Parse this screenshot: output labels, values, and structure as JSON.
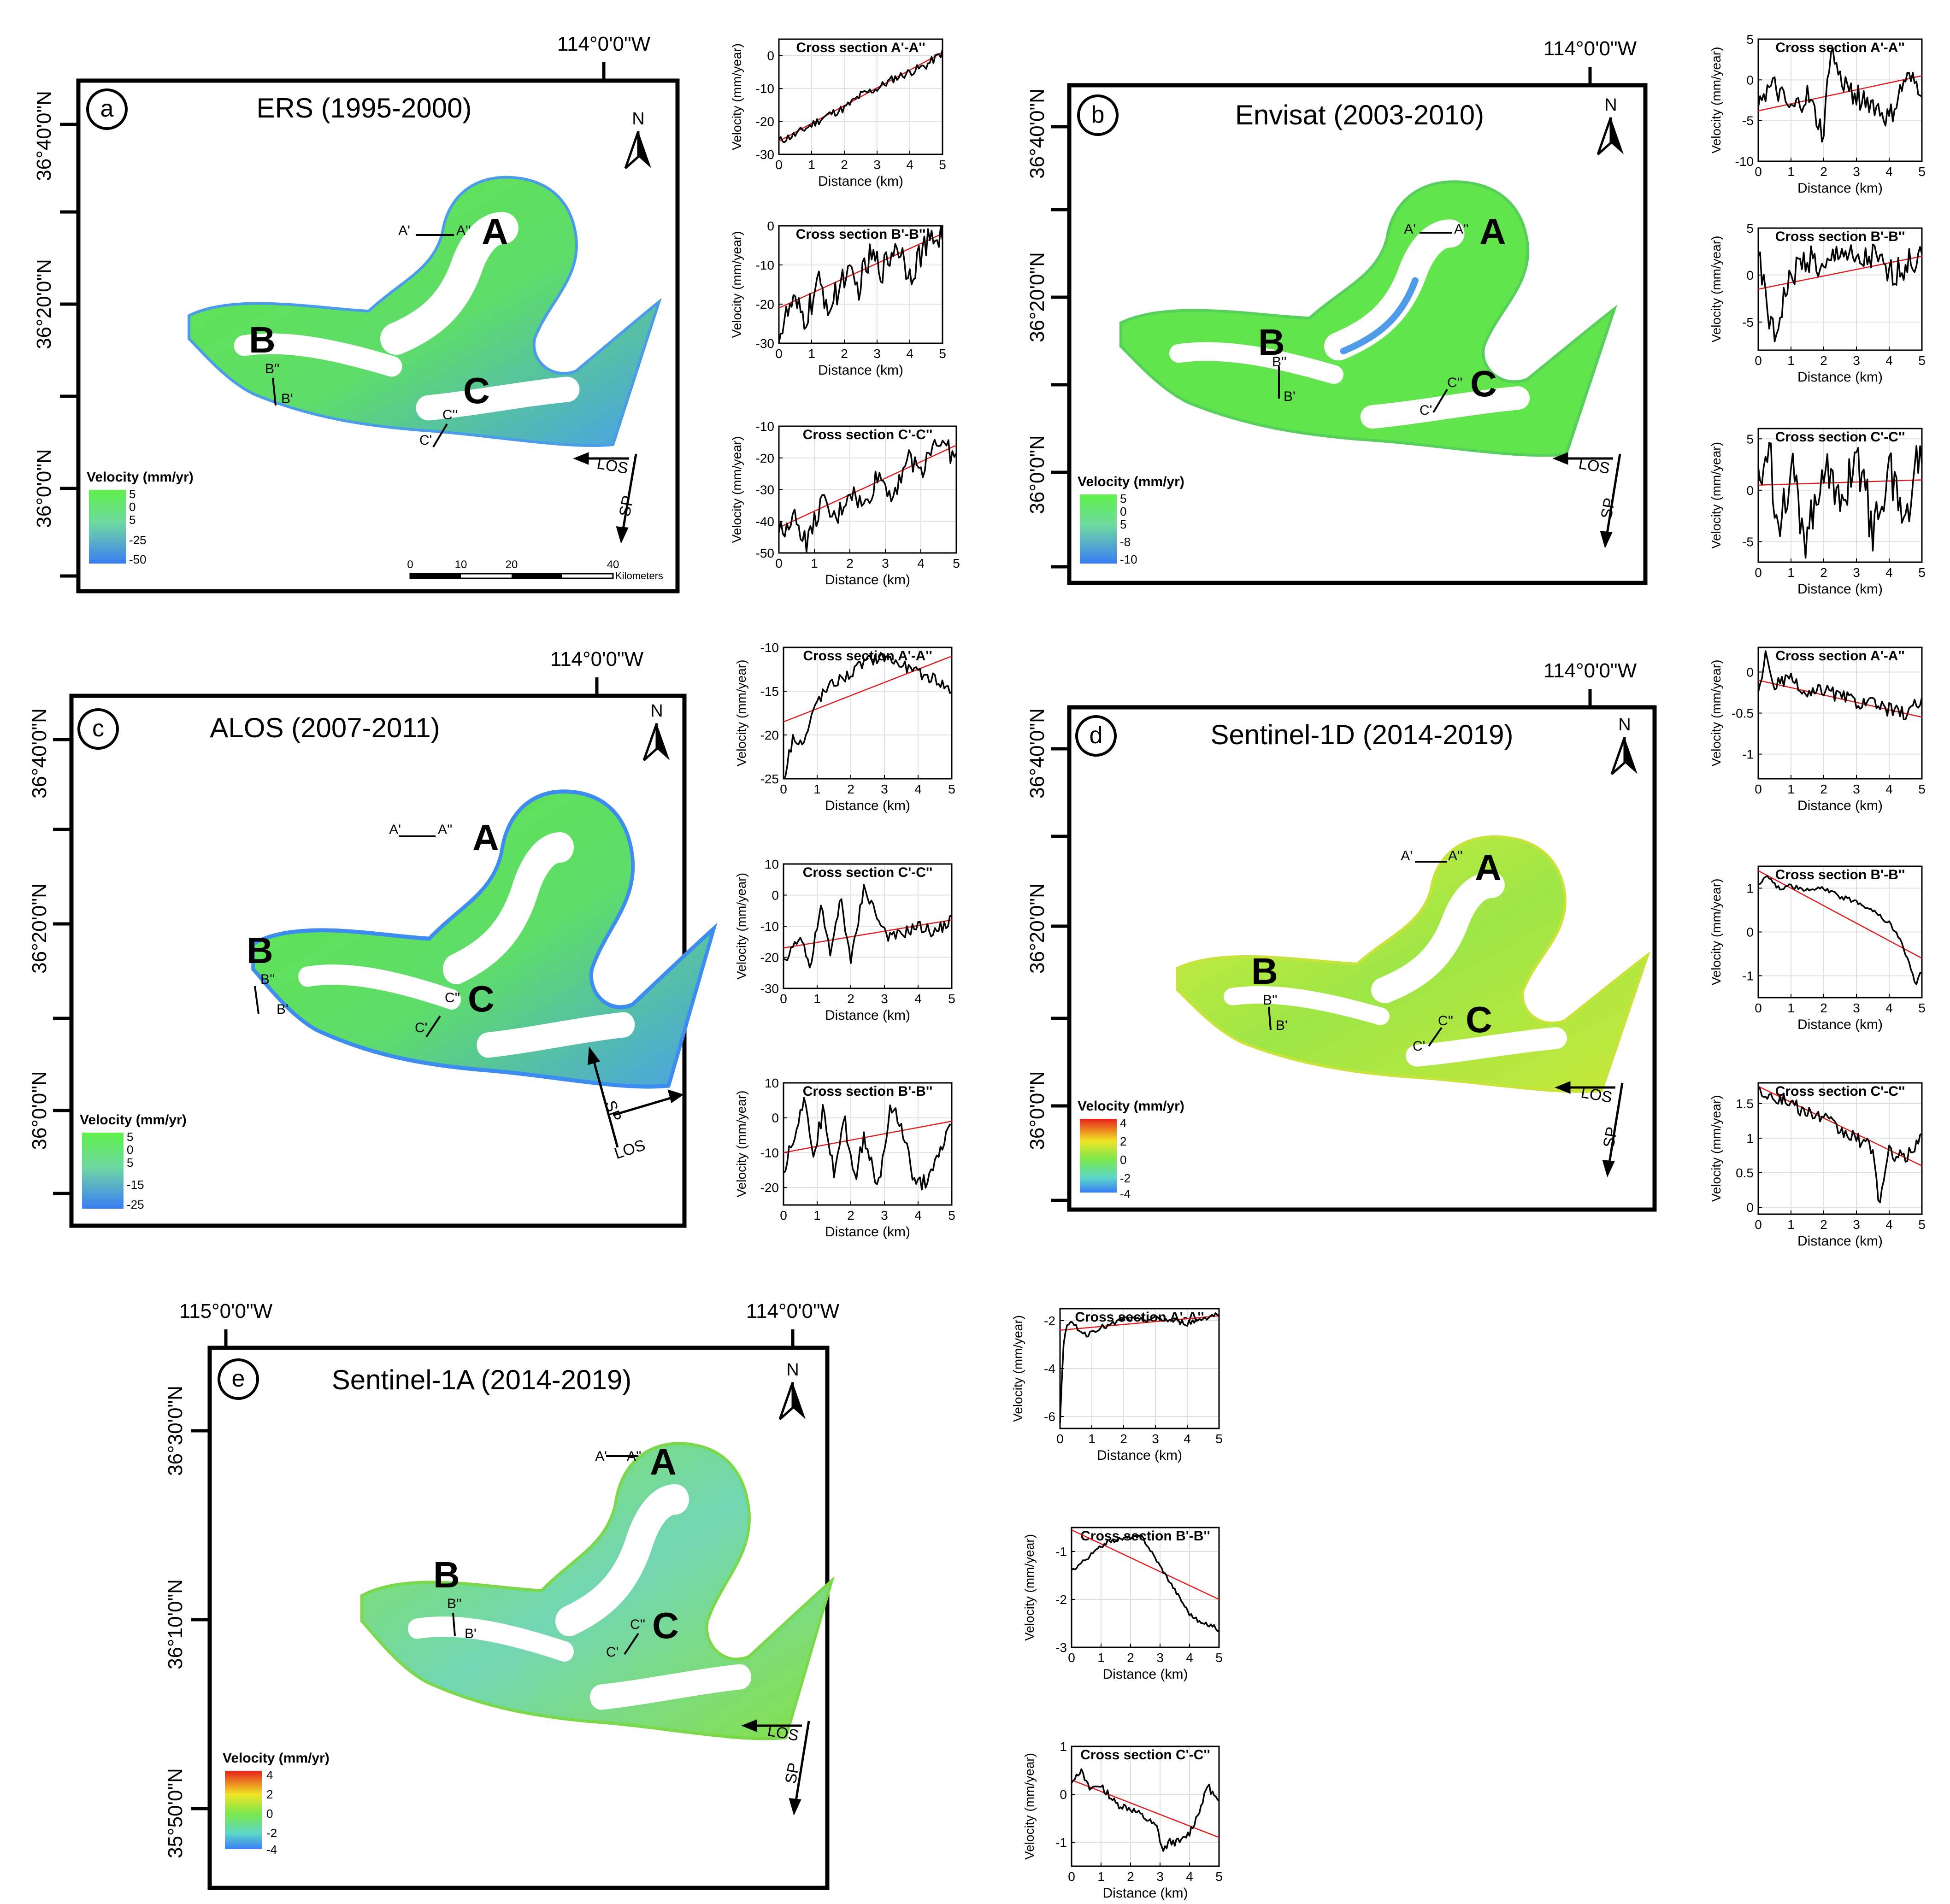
{
  "common": {
    "north_label": "N",
    "los_label": "LOS",
    "sp_label": "SP",
    "legend_title": "Velocity (mm/yr)",
    "x_axis_label": "Distance (km)",
    "y_axis_label": "Velocity (mm/year)",
    "x_ticks": [
      "0",
      "1",
      "2",
      "3",
      "4",
      "5"
    ],
    "label_A": "A",
    "label_B": "B",
    "label_C": "C",
    "label_A1": "A'",
    "label_A2": "A''",
    "label_B1": "B'",
    "label_B2": "B''",
    "label_C1": "C'",
    "label_C2": "C''",
    "colors": {
      "green": "#66e84e",
      "blue": "#3d8cf0",
      "yellow": "#d6ec3a",
      "red": "#e8231c",
      "trend": "#e41a1c",
      "profile": "#000000"
    }
  },
  "panels": [
    {
      "id": "a",
      "letter": "a",
      "title": "ERS (1995-2000)",
      "lon_label": "114°0'0\"W",
      "lat_labels": [
        "36°40'0\"N",
        "36°20'0\"N",
        "36°0'0\"N"
      ],
      "legend": [
        "5",
        "0",
        "5",
        "-25",
        "-50"
      ],
      "scale": {
        "ticks": [
          "0",
          "10",
          "20",
          "40"
        ],
        "unit": "Kilometers"
      }
    },
    {
      "id": "b",
      "letter": "b",
      "title": "Envisat (2003-2010)",
      "lon_label": "114°0'0\"W",
      "lat_labels": [
        "36°40'0\"N",
        "36°20'0\"N",
        "36°0'0\"N"
      ],
      "legend": [
        "5",
        "0",
        "5",
        "-8",
        "-10"
      ]
    },
    {
      "id": "c",
      "letter": "c",
      "title": "ALOS (2007-2011)",
      "lon_label": "114°0'0\"W",
      "lat_labels": [
        "36°40'0\"N",
        "36°20'0\"N",
        "36°0'0\"N"
      ],
      "legend": [
        "5",
        "0",
        "5",
        "-15",
        "-25"
      ]
    },
    {
      "id": "d",
      "letter": "d",
      "title": "Sentinel-1D (2014-2019)",
      "lon_label": "114°0'0\"W",
      "lat_labels": [
        "36°40'0\"N",
        "36°20'0\"N",
        "36°0'0\"N"
      ],
      "legend": [
        "4",
        "2",
        "0",
        "-2",
        "-4"
      ]
    },
    {
      "id": "e",
      "letter": "e",
      "title": "Sentinel-1A (2014-2019)",
      "lon_labels": [
        "115°0'0\"W",
        "114°0'0\"W"
      ],
      "lat_labels": [
        "36°30'0\"N",
        "36°10'0\"N",
        "35°50'0\"N"
      ],
      "legend": [
        "4",
        "2",
        "0",
        "-2",
        "-4"
      ]
    }
  ],
  "chart_data": [
    {
      "id": "a1",
      "type": "line",
      "title": "Cross section A'-A''",
      "xlabel": "Distance (km)",
      "ylabel": "Velocity (mm/year)",
      "xlim": [
        0,
        5
      ],
      "ylim": [
        -30,
        5
      ],
      "yticks": [
        0,
        -10,
        -20,
        -30
      ],
      "ytick_labels": [
        "0",
        "-10",
        "-20",
        "-30"
      ],
      "trend": [
        [
          0,
          -26
        ],
        [
          5,
          1
        ]
      ],
      "noise": 1.3,
      "x": [
        0,
        0.5,
        1,
        1.5,
        2,
        2.5,
        3,
        3.5,
        4,
        4.5,
        5
      ],
      "y": [
        -26,
        -24,
        -21,
        -18,
        -16,
        -12,
        -10,
        -7,
        -5,
        -3,
        1
      ]
    },
    {
      "id": "a2",
      "type": "line",
      "title": "Cross section B'-B''",
      "xlabel": "Distance (km)",
      "ylabel": "Velocity (mm/year)",
      "xlim": [
        0,
        5
      ],
      "ylim": [
        -30,
        0
      ],
      "yticks": [
        0,
        -10,
        -20,
        -30
      ],
      "ytick_labels": [
        "0",
        "-10",
        "-20",
        "-30"
      ],
      "trend": [
        [
          0,
          -21
        ],
        [
          5,
          -2
        ]
      ],
      "noise": 4,
      "x": [
        0,
        0.4,
        0.8,
        1.2,
        1.6,
        2,
        2.4,
        2.8,
        3.2,
        3.6,
        4,
        4.4,
        4.8,
        5
      ],
      "y": [
        -28,
        -20,
        -24,
        -15,
        -21,
        -12,
        -16,
        -8,
        -11,
        -4,
        -12,
        -6,
        -3,
        -2
      ]
    },
    {
      "id": "a3",
      "type": "line",
      "title": "Cross section C'-C''",
      "xlabel": "Distance (km)",
      "ylabel": "Velocity (mm/year)",
      "xlim": [
        0,
        5
      ],
      "ylim": [
        -50,
        -10
      ],
      "yticks": [
        -10,
        -20,
        -30,
        -40,
        -50
      ],
      "ytick_labels": [
        "-10",
        "-20",
        "-30",
        "-40",
        "-50"
      ],
      "trend": [
        [
          0,
          -42
        ],
        [
          5,
          -16
        ]
      ],
      "noise": 3.5,
      "x": [
        0,
        0.4,
        0.8,
        1.2,
        1.6,
        2,
        2.4,
        2.8,
        3.2,
        3.6,
        4,
        4.4,
        4.8,
        5
      ],
      "y": [
        -44,
        -38,
        -47,
        -34,
        -40,
        -30,
        -36,
        -25,
        -32,
        -20,
        -24,
        -14,
        -18,
        -20
      ]
    },
    {
      "id": "b1",
      "type": "line",
      "title": "Cross section A'-A''",
      "xlabel": "Distance (km)",
      "ylabel": "Velocity (mm/year)",
      "xlim": [
        0,
        5
      ],
      "ylim": [
        -10,
        5
      ],
      "yticks": [
        5,
        0,
        -5,
        -10
      ],
      "ytick_labels": [
        "5",
        "0",
        "-5",
        "-10"
      ],
      "trend": [
        [
          0,
          -3.8
        ],
        [
          5,
          0.5
        ]
      ],
      "noise": 1.5,
      "x": [
        0,
        0.5,
        1,
        1.5,
        2,
        2.2,
        2.5,
        3,
        3.5,
        4,
        4.5,
        5
      ],
      "y": [
        -2,
        -1,
        -4,
        -2,
        -7,
        4,
        0,
        -2,
        -3,
        -5,
        0,
        -1
      ]
    },
    {
      "id": "b2",
      "type": "line",
      "title": "Cross section B'-B''",
      "xlabel": "Distance (km)",
      "ylabel": "Velocity (mm/year)",
      "xlim": [
        0,
        5
      ],
      "ylim": [
        -8,
        5
      ],
      "yticks": [
        5,
        0,
        -5
      ],
      "ytick_labels": [
        "5",
        "0",
        "-5"
      ],
      "trend": [
        [
          0,
          -1.5
        ],
        [
          5,
          2
        ]
      ],
      "noise": 1.6,
      "x": [
        0,
        0.3,
        0.5,
        0.8,
        1.2,
        1.6,
        2,
        2.5,
        3,
        3.5,
        4,
        4.5,
        5
      ],
      "y": [
        2,
        -4,
        -7,
        -2,
        1,
        2,
        0,
        3,
        1,
        2,
        0,
        1,
        2
      ]
    },
    {
      "id": "b3",
      "type": "line",
      "title": "Cross section C'-C''",
      "xlabel": "Distance (km)",
      "ylabel": "Velocity (mm/year)",
      "xlim": [
        0,
        5
      ],
      "ylim": [
        -7,
        6
      ],
      "yticks": [
        5,
        0,
        -5
      ],
      "ytick_labels": [
        "5",
        "0",
        "-5"
      ],
      "trend": [
        [
          0,
          0.5
        ],
        [
          5,
          1
        ]
      ],
      "noise": 2.4,
      "x": [
        0,
        0.3,
        0.6,
        1,
        1.5,
        2,
        2.5,
        3,
        3.5,
        4,
        4.5,
        5
      ],
      "y": [
        0,
        5,
        -3,
        2,
        -5,
        3,
        -2,
        4,
        -4,
        2,
        -3,
        5
      ]
    },
    {
      "id": "c1",
      "type": "line",
      "title": "Cross section A'-A''",
      "xlabel": "Distance (km)",
      "ylabel": "Velocity (mm/year)",
      "xlim": [
        0,
        5
      ],
      "ylim": [
        -25,
        -10
      ],
      "yticks": [
        -10,
        -15,
        -20,
        -25
      ],
      "ytick_labels": [
        "-10",
        "-15",
        "-20",
        "-25"
      ],
      "trend": [
        [
          0,
          -18.5
        ],
        [
          5,
          -11
        ]
      ],
      "noise": 0.7,
      "x": [
        0,
        0.3,
        0.6,
        1,
        1.5,
        2,
        2.5,
        3,
        3.5,
        4,
        4.5,
        5
      ],
      "y": [
        -25,
        -20,
        -21,
        -16,
        -14,
        -13,
        -11.5,
        -11,
        -12,
        -13,
        -13.5,
        -15
      ]
    },
    {
      "id": "c2",
      "type": "line",
      "title": "Cross section C'-C''",
      "xlabel": "Distance (km)",
      "ylabel": "Velocity (mm/year)",
      "xlim": [
        0,
        5
      ],
      "ylim": [
        -30,
        10
      ],
      "yticks": [
        10,
        0,
        -10,
        -20,
        -30
      ],
      "ytick_labels": [
        "10",
        "0",
        "-10",
        "-20",
        "-30"
      ],
      "trend": [
        [
          0,
          -17
        ],
        [
          5,
          -8
        ]
      ],
      "noise": 2,
      "x": [
        0,
        0.5,
        0.8,
        1.1,
        1.4,
        1.7,
        2,
        2.4,
        2.9,
        3.2,
        3.6,
        4,
        4.5,
        5
      ],
      "y": [
        -22,
        -12,
        -24,
        -3,
        -20,
        0,
        -22,
        3,
        -10,
        -14,
        -12,
        -10,
        -12,
        -8
      ]
    },
    {
      "id": "c3",
      "type": "line",
      "title": "Cross section B'-B''",
      "xlabel": "Distance (km)",
      "ylabel": "Velocity (mm/year)",
      "xlim": [
        0,
        5
      ],
      "ylim": [
        -25,
        10
      ],
      "yticks": [
        10,
        0,
        -10,
        -20
      ],
      "ytick_labels": [
        "10",
        "0",
        "-10",
        "-20"
      ],
      "trend": [
        [
          0,
          -10
        ],
        [
          5,
          -1
        ]
      ],
      "noise": 2.5,
      "x": [
        0,
        0.3,
        0.6,
        0.9,
        1.2,
        1.5,
        1.8,
        2.1,
        2.4,
        2.8,
        3.2,
        3.6,
        3.9,
        4.4,
        5
      ],
      "y": [
        -15,
        -5,
        5,
        -10,
        3,
        -15,
        0,
        -18,
        -5,
        -20,
        3,
        -5,
        -20,
        -17,
        -1
      ]
    },
    {
      "id": "d1",
      "type": "line",
      "title": "Cross section A'-A''",
      "xlabel": "Distance (km)",
      "ylabel": "Velocity (mm/year)",
      "xlim": [
        0,
        5
      ],
      "ylim": [
        -1.3,
        0.3
      ],
      "yticks": [
        0,
        -0.5,
        -1
      ],
      "ytick_labels": [
        "0",
        "-0.5",
        "-1"
      ],
      "trend": [
        [
          0,
          -0.1
        ],
        [
          5,
          -0.55
        ]
      ],
      "noise": 0.09,
      "x": [
        0,
        0.2,
        0.5,
        1,
        1.5,
        2,
        2.5,
        3,
        3.5,
        4,
        4.5,
        5
      ],
      "y": [
        -0.3,
        0.2,
        -0.15,
        -0.1,
        -0.3,
        -0.2,
        -0.3,
        -0.35,
        -0.4,
        -0.45,
        -0.5,
        -0.35
      ]
    },
    {
      "id": "d2",
      "type": "line",
      "title": "Cross section B'-B''",
      "xlabel": "Distance (km)",
      "ylabel": "Velocity (mm/year)",
      "xlim": [
        0,
        5
      ],
      "ylim": [
        -1.5,
        1.5
      ],
      "yticks": [
        1,
        0,
        -1
      ],
      "ytick_labels": [
        "1",
        "0",
        "-1"
      ],
      "trend": [
        [
          0,
          1.4
        ],
        [
          5,
          -0.6
        ]
      ],
      "noise": 0.05,
      "x": [
        0,
        0.3,
        0.6,
        1,
        1.5,
        2,
        2.5,
        3,
        3.5,
        4,
        4.3,
        4.6,
        4.8,
        5
      ],
      "y": [
        1.1,
        1.3,
        1.0,
        1.05,
        0.95,
        1.0,
        0.8,
        0.7,
        0.5,
        0.2,
        -0.1,
        -0.7,
        -1.2,
        -0.9
      ]
    },
    {
      "id": "d3",
      "type": "line",
      "title": "Cross section C'-C''",
      "xlabel": "Distance (km)",
      "ylabel": "Velocity (mm/year)",
      "xlim": [
        0,
        5
      ],
      "ylim": [
        -0.1,
        1.8
      ],
      "yticks": [
        1.5,
        1,
        0.5,
        0
      ],
      "ytick_labels": [
        "1.5",
        "1",
        "0.5",
        "0"
      ],
      "trend": [
        [
          0,
          1.75
        ],
        [
          5,
          0.6
        ]
      ],
      "noise": 0.1,
      "x": [
        0,
        0.5,
        1,
        1.5,
        2,
        2.5,
        3,
        3.5,
        3.7,
        4,
        4.5,
        5
      ],
      "y": [
        1.7,
        1.6,
        1.5,
        1.35,
        1.3,
        1.1,
        1.0,
        0.85,
        0.05,
        0.8,
        0.7,
        1.05
      ]
    },
    {
      "id": "e1",
      "type": "line",
      "title": "Cross section A'-A''",
      "xlabel": "Distance (km)",
      "ylabel": "Velocity (mm/year)",
      "xlim": [
        0,
        5
      ],
      "ylim": [
        -6.5,
        -1.5
      ],
      "yticks": [
        -2,
        -4,
        -6
      ],
      "ytick_labels": [
        "-2",
        "-4",
        "-6"
      ],
      "trend": [
        [
          0,
          -2.4
        ],
        [
          5,
          -1.8
        ]
      ],
      "noise": 0.12,
      "x": [
        0,
        0.1,
        0.2,
        0.4,
        0.8,
        1.2,
        1.6,
        2,
        2.5,
        3,
        3.5,
        4,
        4.5,
        5
      ],
      "y": [
        -6.2,
        -3,
        -2.3,
        -2.1,
        -2.6,
        -2.3,
        -2.2,
        -1.9,
        -2.0,
        -1.9,
        -2.0,
        -2.1,
        -1.9,
        -1.7
      ]
    },
    {
      "id": "e2",
      "type": "line",
      "title": "Cross section B'-B''",
      "xlabel": "Distance (km)",
      "ylabel": "Velocity (mm/year)",
      "xlim": [
        0,
        5
      ],
      "ylim": [
        -3,
        -0.5
      ],
      "yticks": [
        -1,
        -2,
        -3
      ],
      "ytick_labels": [
        "-1",
        "-2",
        "-3"
      ],
      "trend": [
        [
          0,
          -0.55
        ],
        [
          5,
          -2.0
        ]
      ],
      "noise": 0.04,
      "x": [
        0,
        0.4,
        0.8,
        1.2,
        1.6,
        2,
        2.4,
        2.8,
        3.2,
        3.6,
        4,
        4.4,
        4.8,
        5
      ],
      "y": [
        -1.4,
        -1.2,
        -1.0,
        -0.8,
        -0.75,
        -0.7,
        -0.7,
        -1.1,
        -1.5,
        -1.9,
        -2.3,
        -2.5,
        -2.55,
        -2.65
      ]
    },
    {
      "id": "e3",
      "type": "line",
      "title": "Cross section C'-C''",
      "xlabel": "Distance (km)",
      "ylabel": "Velocity (mm/year)",
      "xlim": [
        0,
        5
      ],
      "ylim": [
        -1.5,
        1
      ],
      "yticks": [
        1,
        0,
        -1
      ],
      "ytick_labels": [
        "1",
        "0",
        "-1"
      ],
      "trend": [
        [
          0,
          0.3
        ],
        [
          5,
          -0.9
        ]
      ],
      "noise": 0.08,
      "x": [
        0,
        0.3,
        0.6,
        1,
        1.5,
        2,
        2.5,
        2.9,
        3.1,
        3.3,
        3.7,
        4,
        4.3,
        4.6,
        5
      ],
      "y": [
        0.3,
        0.5,
        0.1,
        0.2,
        -0.2,
        -0.3,
        -0.5,
        -0.7,
        -1.2,
        -1.0,
        -1.0,
        -0.8,
        -0.4,
        0.2,
        -0.2
      ]
    }
  ]
}
